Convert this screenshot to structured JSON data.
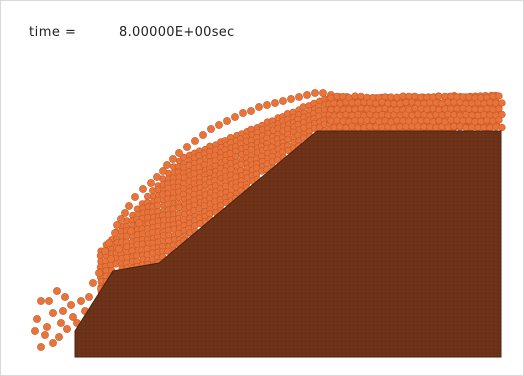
{
  "readout": {
    "time_label": "time =",
    "time_value": "8.00000E+00sec"
  },
  "colors": {
    "background": "#ffffff",
    "frame_border": "#d9d9d9",
    "solid_block": "#6e3318",
    "solid_grid": "#5a2812",
    "particle": "#e8743b",
    "particle_edge": "#c45a26"
  }
}
